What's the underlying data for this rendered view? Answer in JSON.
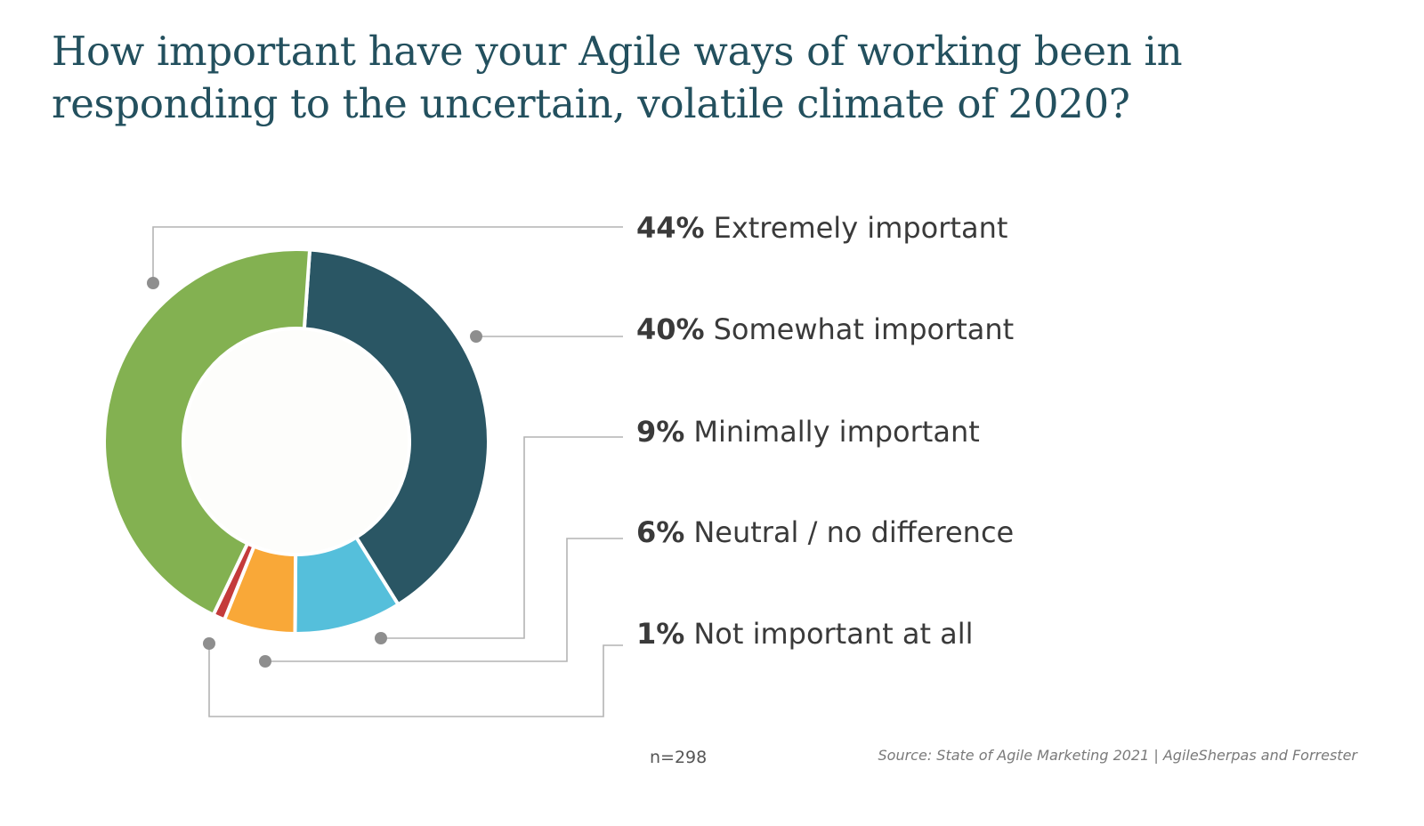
{
  "title": "How important have your Agile ways of working been in responding to the uncertain, volatile climate of 2020?",
  "chart_data": {
    "type": "pie",
    "donut": true,
    "title": "How important have your Agile ways of working been in responding to the uncertain, volatile climate of 2020?",
    "categories": [
      "Extremely important",
      "Somewhat important",
      "Minimally important",
      "Neutral / no difference",
      "Not important at all"
    ],
    "values": [
      44,
      40,
      9,
      6,
      1
    ],
    "value_labels": [
      "44%",
      "40%",
      "9%",
      "6%",
      "1%"
    ],
    "colors": [
      "#83b151",
      "#2a5664",
      "#55bfdb",
      "#f9a838",
      "#c43b3b"
    ],
    "sample_size": "n=298",
    "source": "Source: State of Agile Marketing 2021 | AgileSherpas and Forrester"
  }
}
